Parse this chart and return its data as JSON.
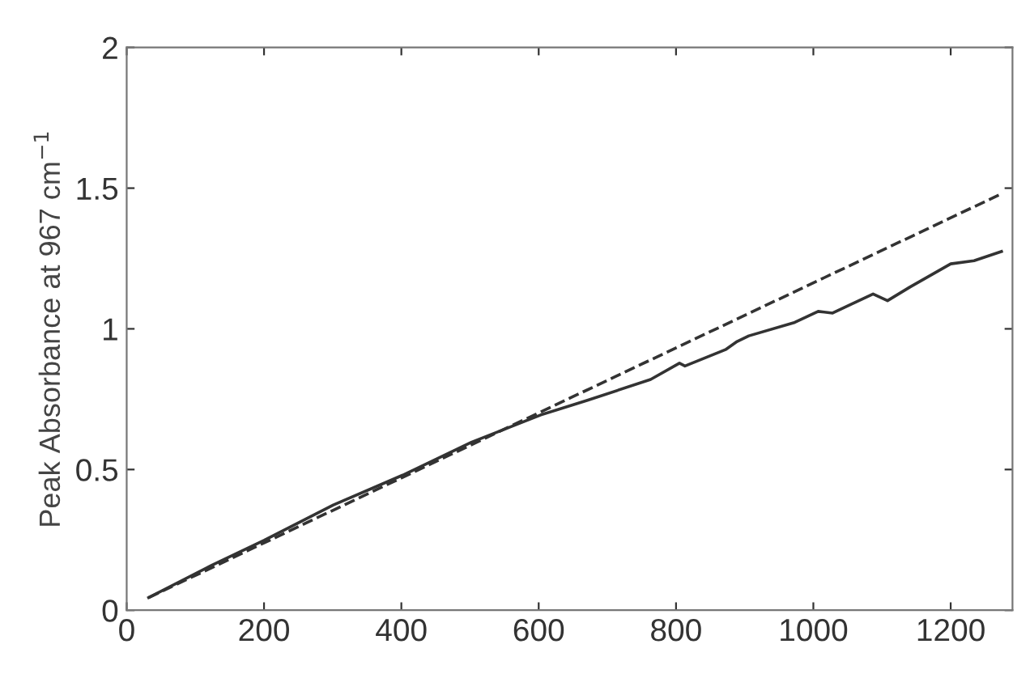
{
  "chart_data": {
    "type": "line",
    "ylabel": "Peak Absorbance at 967 cm$^{−1}$",
    "xlim": [
      0,
      1290
    ],
    "xticks": [
      0,
      200,
      400,
      600,
      800,
      1000,
      1200
    ],
    "ylim": [
      0,
      2
    ],
    "yticks": [
      0,
      0.5,
      1,
      1.5,
      2
    ],
    "grid": false,
    "legend": false,
    "marker": "none",
    "series": [
      {
        "color": "#333333",
        "line_style": "solid",
        "x": [
          32,
          124,
          200,
          301,
          402,
          502,
          603,
          671,
          763,
          805,
          813,
          872,
          889,
          906,
          973,
          1007,
          1028,
          1053,
          1087,
          1108,
          1141,
          1200,
          1234,
          1274
        ],
        "values": [
          0.045,
          0.16,
          0.248,
          0.374,
          0.48,
          0.597,
          0.694,
          0.746,
          0.82,
          0.878,
          0.868,
          0.926,
          0.955,
          0.975,
          1.023,
          1.062,
          1.056,
          1.085,
          1.124,
          1.1,
          1.149,
          1.231,
          1.242,
          1.275
        ]
      },
      {
        "color": "#333333",
        "line_style": "dashed",
        "x": [
          32,
          1274
        ],
        "values": [
          0.045,
          1.48
        ]
      }
    ]
  }
}
